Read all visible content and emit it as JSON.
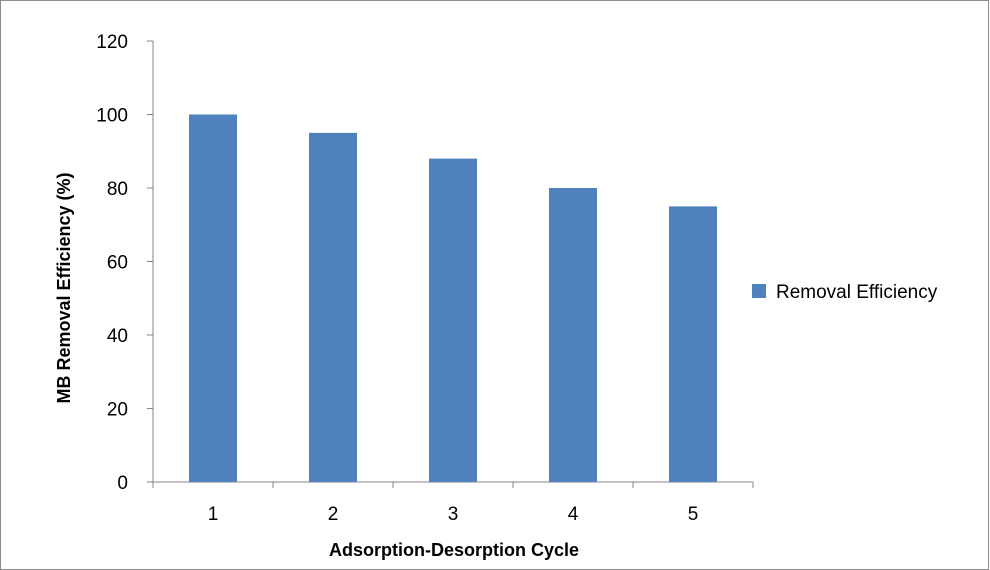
{
  "chart_data": {
    "type": "bar",
    "title": "",
    "xlabel": "Adsorption-Desorption Cycle",
    "ylabel": "MB Removal Efficiency (%)",
    "categories": [
      "1",
      "2",
      "3",
      "4",
      "5"
    ],
    "series": [
      {
        "name": "Removal Efficiency",
        "values": [
          100,
          95,
          88,
          80,
          75
        ],
        "color": "#4F81BD"
      }
    ],
    "ylim": [
      0,
      120
    ],
    "y_ticks": [
      "0",
      "20",
      "40",
      "60",
      "80",
      "100",
      "120"
    ],
    "grid": false,
    "legend_position": "right"
  }
}
